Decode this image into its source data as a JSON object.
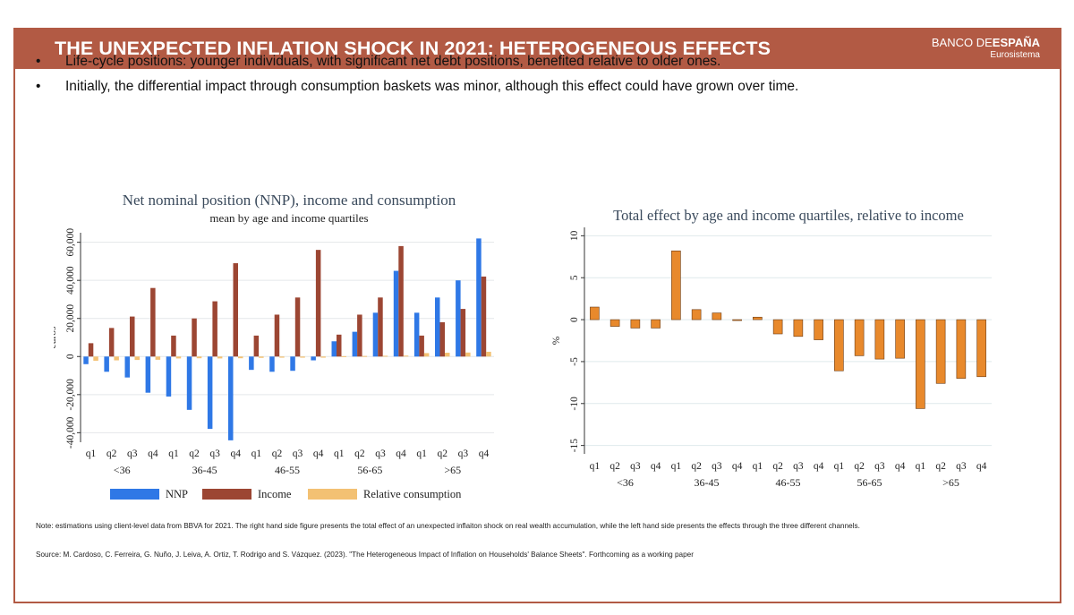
{
  "header": {
    "title": "THE UNEXPECTED INFLATION SHOCK IN 2021: HETEROGENEOUS EFFECTS",
    "logo_part1": "BANCO DE",
    "logo_part2": "ESPAÑA",
    "logo_sub": "Eurosistema"
  },
  "bullets": [
    {
      "marker": "•",
      "text": "Life-cycle positions: younger individuals, with significant net debt positions, benefited relative to older ones."
    },
    {
      "marker": "•",
      "text": "Initially, the differential impact through consumption baskets was minor, although this effect could have grown over time."
    }
  ],
  "colors": {
    "brand": "#b25a44",
    "nnp": "#2f78e6",
    "income": "#9c4633",
    "consumption": "#f3c173",
    "effect": "#e8892c"
  },
  "chart_data": [
    {
      "type": "bar",
      "title": "Net nominal position (NNP), income and consumption",
      "subtitle": "mean by age and income quartiles",
      "ylabel": "euros",
      "ylim": [
        -45000,
        65000
      ],
      "yticks": [
        -40000,
        -20000,
        0,
        20000,
        40000,
        60000
      ],
      "ytick_labels": [
        "-40,000",
        "-20,000",
        "0",
        "20,000",
        "40,000",
        "60,000"
      ],
      "groups": [
        "<36",
        "36-45",
        "46-55",
        "56-65",
        ">65"
      ],
      "quartiles": [
        "q1",
        "q2",
        "q3",
        "q4"
      ],
      "series": [
        {
          "name": "NNP",
          "color": "#2f78e6",
          "values": [
            -4000,
            -8000,
            -11000,
            -19000,
            -21000,
            -28000,
            -38000,
            -44000,
            -7000,
            -8000,
            -7500,
            -2000,
            8000,
            13000,
            23000,
            45000,
            23000,
            31000,
            40000,
            62000
          ]
        },
        {
          "name": "Income",
          "color": "#9c4633",
          "values": [
            7000,
            15000,
            21000,
            36000,
            11000,
            20000,
            29000,
            49000,
            11000,
            22000,
            31000,
            56000,
            11500,
            22000,
            31000,
            58000,
            11000,
            18000,
            25000,
            42000
          ]
        },
        {
          "name": "Relative consumption",
          "color": "#f3c173",
          "values": [
            -2200,
            -2000,
            -1800,
            -1700,
            -1000,
            -900,
            -1000,
            -900,
            -700,
            -600,
            -600,
            -600,
            200,
            300,
            400,
            500,
            1800,
            2000,
            2100,
            2500
          ]
        }
      ],
      "legend": "bottom"
    },
    {
      "type": "bar",
      "title": "Total effect by age and income quartiles, relative to income",
      "ylabel": "%",
      "ylim": [
        -16,
        11
      ],
      "yticks": [
        10,
        5,
        0,
        -5,
        -10,
        -15
      ],
      "ytick_labels": [
        "10",
        "5",
        "0",
        "-5",
        "-10",
        "-15"
      ],
      "groups": [
        "<36",
        "36-45",
        "46-55",
        "56-65",
        ">65"
      ],
      "quartiles": [
        "q1",
        "q2",
        "q3",
        "q4"
      ],
      "series": [
        {
          "name": "Total effect",
          "color": "#e8892c",
          "values": [
            1.5,
            -0.8,
            -1.0,
            -1.0,
            8.2,
            1.2,
            0.8,
            -0.1,
            0.3,
            -1.7,
            -2.0,
            -2.4,
            -6.1,
            -4.3,
            -4.7,
            -4.6,
            -10.6,
            -7.6,
            -7.0,
            -6.8
          ]
        }
      ]
    }
  ],
  "note": "Note: estimations using client-level data from BBVA for 2021. The right hand side figure presents the total effect of an unexpected inflaiton shock on real wealth accumulation, while the left hand side presents the effects through the three different channels.",
  "source": "Source: M. Cardoso, C. Ferreira, G. Nuño, J. Leiva, A. Ortiz, T. Rodrigo and S. Vázquez. (2023). \"The Heterogeneous Impact of Inflation on Households' Balance Sheets\". Forthcoming as  a working paper"
}
